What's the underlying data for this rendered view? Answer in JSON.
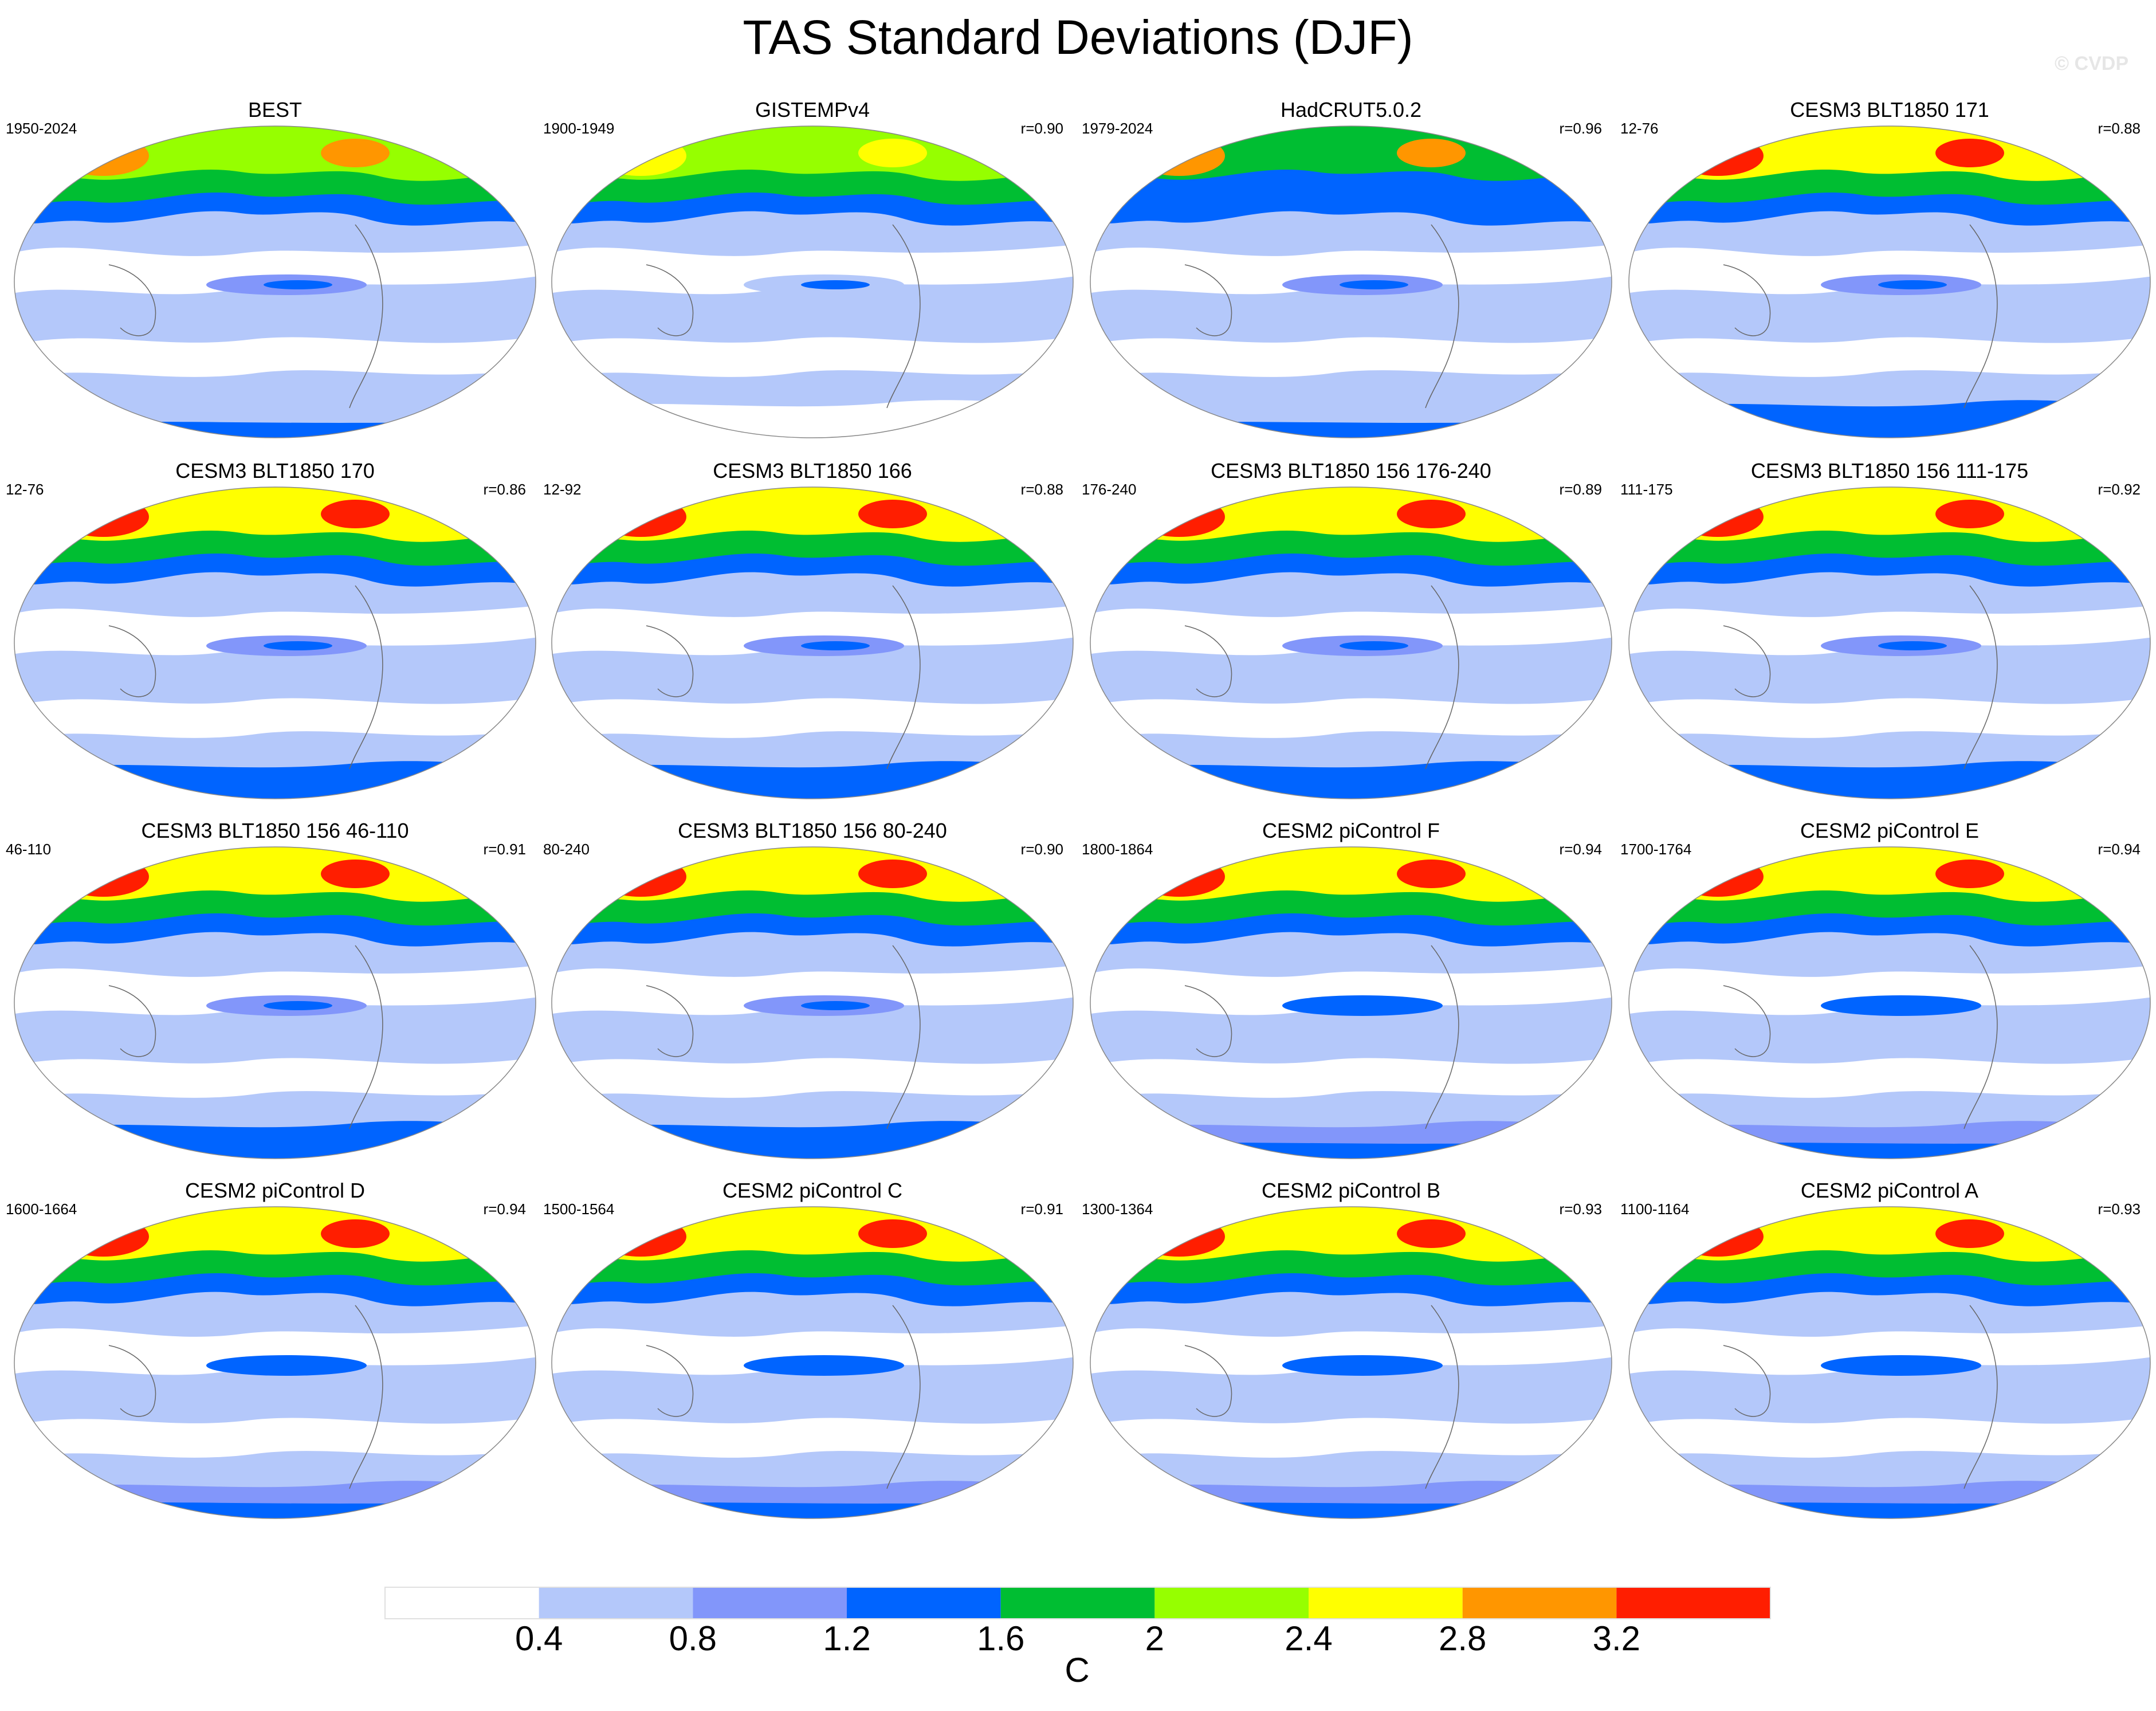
{
  "title": "TAS Standard Deviations (DJF)",
  "copyright": "© CVDP",
  "colorbar": {
    "ticks": [
      "0.4",
      "0.8",
      "1.2",
      "1.6",
      "2",
      "2.4",
      "2.8",
      "3.2"
    ],
    "colors": [
      "#ffffff",
      "#b4c8fa",
      "#8296fa",
      "#0064ff",
      "#00be32",
      "#96ff00",
      "#ffff00",
      "#ff9600",
      "#ff1e00"
    ],
    "unit": "C"
  },
  "panels": [
    {
      "title": "BEST",
      "period": "1950-2024",
      "corr": "",
      "variant": "obs"
    },
    {
      "title": "GISTEMPv4",
      "period": "1900-1949",
      "corr": "r=0.90",
      "variant": "gis"
    },
    {
      "title": "HadCRUT5.0.2",
      "period": "1979-2024",
      "corr": "r=0.96",
      "variant": "had"
    },
    {
      "title": "CESM3 BLT1850 171",
      "period": "12-76",
      "corr": "r=0.88",
      "variant": "cesm3"
    },
    {
      "title": "CESM3 BLT1850 170",
      "period": "12-76",
      "corr": "r=0.86",
      "variant": "cesm3"
    },
    {
      "title": "CESM3 BLT1850 166",
      "period": "12-92",
      "corr": "r=0.88",
      "variant": "cesm3"
    },
    {
      "title": "CESM3 BLT1850 156 176-240",
      "period": "176-240",
      "corr": "r=0.89",
      "variant": "cesm3"
    },
    {
      "title": "CESM3 BLT1850 156 111-175",
      "period": "111-175",
      "corr": "r=0.92",
      "variant": "cesm3"
    },
    {
      "title": "CESM3 BLT1850 156 46-110",
      "period": "46-110",
      "corr": "r=0.91",
      "variant": "cesm3"
    },
    {
      "title": "CESM3 BLT1850 156 80-240",
      "period": "80-240",
      "corr": "r=0.90",
      "variant": "cesm3"
    },
    {
      "title": "CESM2 piControl F",
      "period": "1800-1864",
      "corr": "r=0.94",
      "variant": "cesm2"
    },
    {
      "title": "CESM2 piControl E",
      "period": "1700-1764",
      "corr": "r=0.94",
      "variant": "cesm2"
    },
    {
      "title": "CESM2 piControl D",
      "period": "1600-1664",
      "corr": "r=0.94",
      "variant": "cesm2"
    },
    {
      "title": "CESM2 piControl C",
      "period": "1500-1564",
      "corr": "r=0.91",
      "variant": "cesm2"
    },
    {
      "title": "CESM2 piControl B",
      "period": "1300-1364",
      "corr": "r=0.93",
      "variant": "cesm2"
    },
    {
      "title": "CESM2 piControl A",
      "period": "1100-1164",
      "corr": "r=0.93",
      "variant": "cesm2"
    }
  ]
}
